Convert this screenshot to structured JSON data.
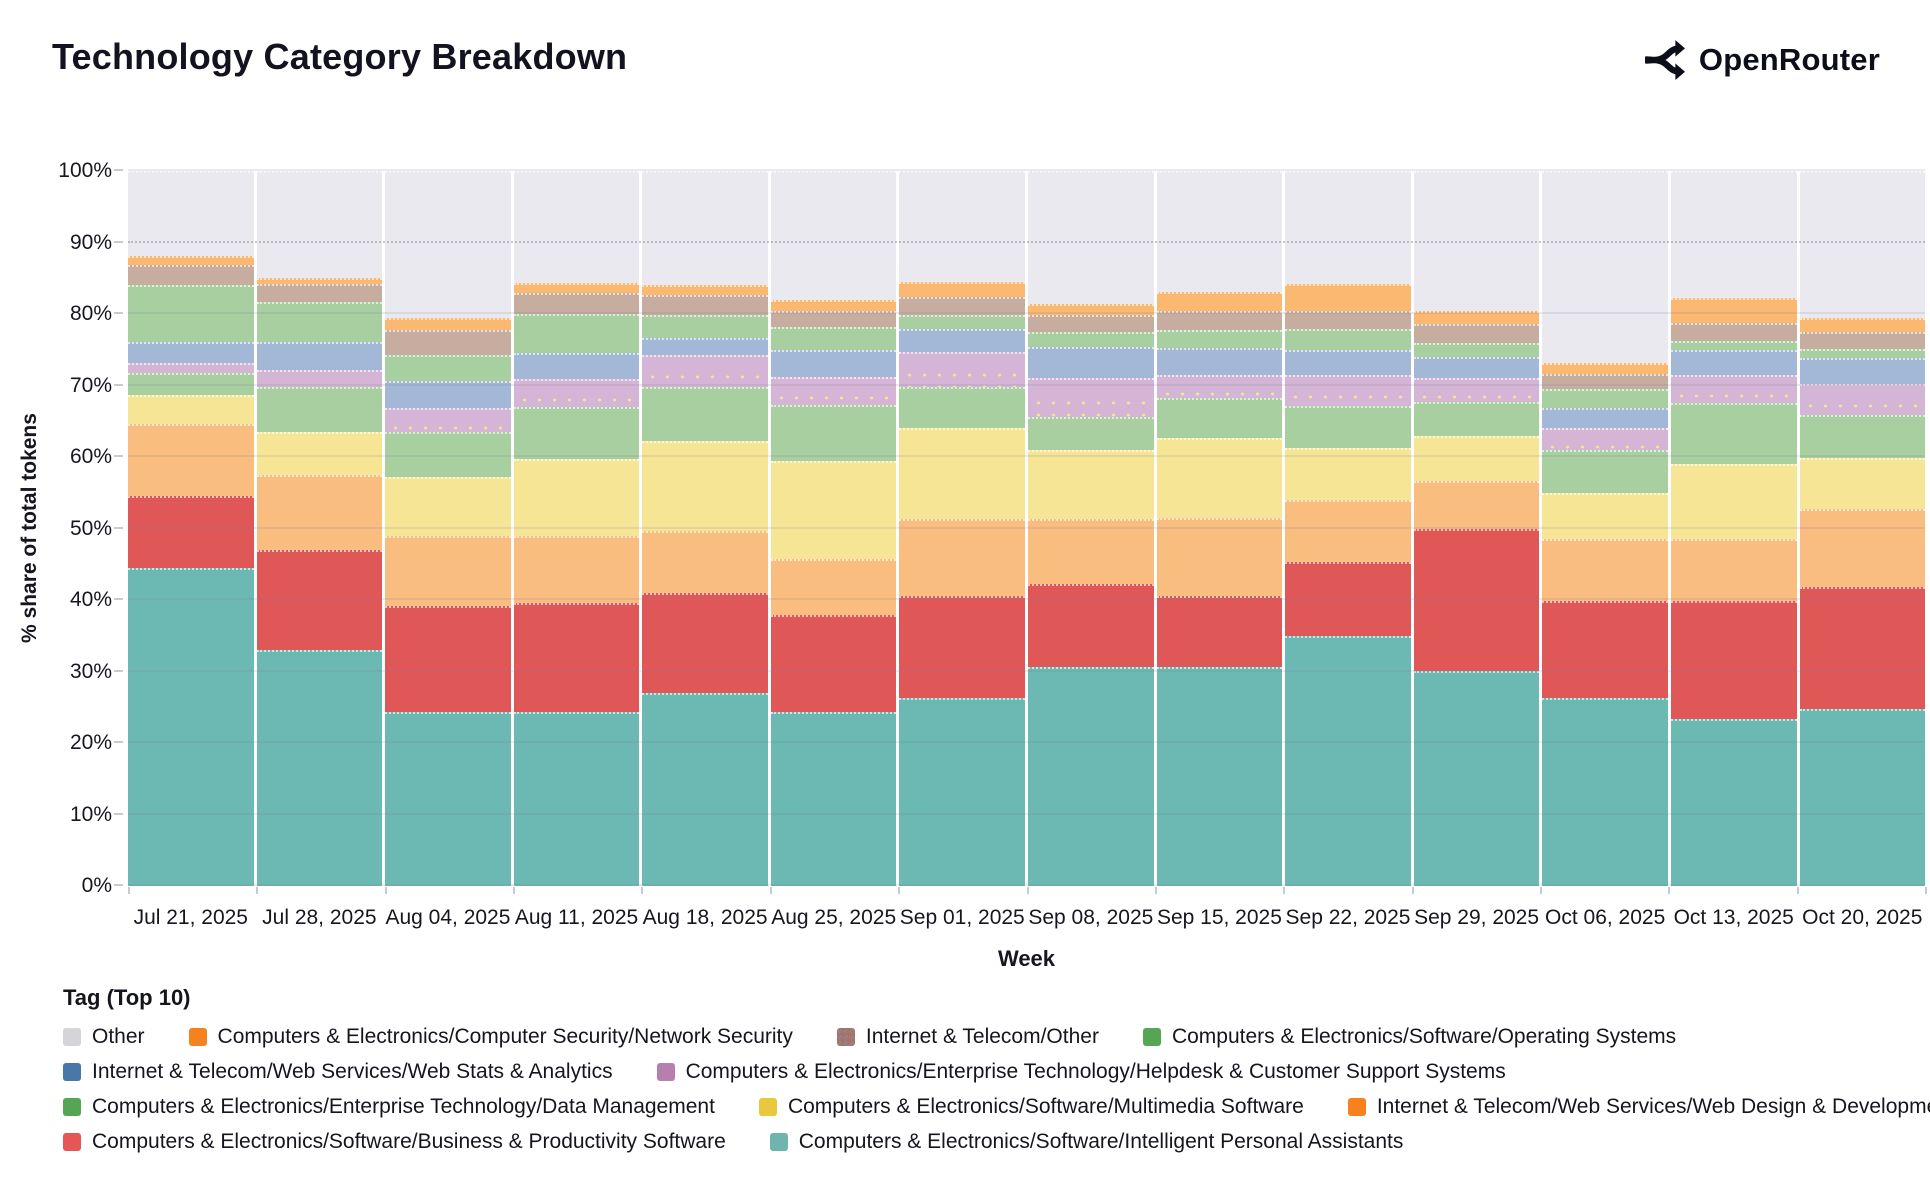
{
  "header": {
    "title": "Technology Category Breakdown",
    "brand": "OpenRouter"
  },
  "axes": {
    "y_title": "% share of total tokens",
    "x_title": "Week",
    "y_ticks": [
      "0%",
      "10%",
      "20%",
      "30%",
      "40%",
      "50%",
      "60%",
      "70%",
      "80%",
      "90%",
      "100%"
    ]
  },
  "legend": {
    "title": "Tag (Top 10)"
  },
  "chart_data": {
    "type": "bar",
    "stacked": true,
    "title": "Technology Category Breakdown",
    "xlabel": "Week",
    "ylabel": "% share of total tokens",
    "ylim": [
      0,
      100
    ],
    "legend_title": "Tag (Top 10)",
    "legend_position": "bottom",
    "grid": true,
    "categories": [
      "Jul 21, 2025",
      "Jul 28, 2025",
      "Aug 04, 2025",
      "Aug 11, 2025",
      "Aug 18, 2025",
      "Aug 25, 2025",
      "Sep 01, 2025",
      "Sep 08, 2025",
      "Sep 15, 2025",
      "Sep 22, 2025",
      "Sep 29, 2025",
      "Oct 06, 2025",
      "Oct 13, 2025",
      "Oct 20, 2025"
    ],
    "series": [
      {
        "name": "Computers & Electronics/Software/Intelligent Personal Assistants",
        "legend_color": "#6fb5ad",
        "bar_color": "#6cb8b2",
        "values": [
          44.5,
          33.0,
          24.3,
          24.3,
          27.0,
          24.3,
          26.3,
          30.6,
          30.6,
          34.9,
          30.1,
          26.3,
          23.4,
          24.8
        ]
      },
      {
        "name": "Computers & Electronics/Software/Business & Productivity Software",
        "legend_color": "#e45756",
        "bar_color": "#e05758",
        "values": [
          10.0,
          14.0,
          14.9,
          15.3,
          14.0,
          13.6,
          14.3,
          11.7,
          10.0,
          10.4,
          19.8,
          13.5,
          16.5,
          17.0
        ]
      },
      {
        "name": "Internet & Telecom/Web Services/Web Design & Development",
        "legend_color": "#f5821e",
        "bar_color": "#f9bd80",
        "values": [
          10.1,
          10.5,
          9.8,
          9.4,
          8.6,
          7.9,
          10.7,
          9.0,
          10.9,
          8.7,
          6.7,
          8.7,
          8.6,
          10.9
        ]
      },
      {
        "name": "Computers & Electronics/Software/Multimedia Software",
        "legend_color": "#e9c83e",
        "bar_color": "#f6e595",
        "values": [
          4.1,
          6.0,
          8.2,
          10.7,
          12.6,
          13.6,
          12.7,
          9.7,
          11.1,
          7.3,
          6.4,
          6.4,
          10.5,
          7.2
        ]
      },
      {
        "name": "Computers & Electronics/Enterprise Technology/Data Management",
        "legend_color": "#55a555",
        "bar_color": "#a8cfa0",
        "values": [
          3.0,
          6.3,
          6.3,
          7.3,
          7.6,
          7.9,
          5.8,
          4.6,
          5.6,
          5.9,
          4.7,
          6.1,
          8.5,
          6.0
        ]
      },
      {
        "name": "Computers & Electronics/Enterprise Technology/Helpdesk & Customer Support Systems",
        "legend_color": "#b77fad",
        "bar_color": "#d5b5d5",
        "pattern": "dots",
        "values": [
          1.4,
          2.4,
          3.3,
          3.9,
          4.5,
          3.9,
          4.9,
          5.4,
          3.3,
          4.3,
          3.4,
          3.0,
          4.0,
          4.3
        ]
      },
      {
        "name": "Internet & Telecom/Web Services/Web Stats & Analytics",
        "legend_color": "#4878a8",
        "bar_color": "#a2b8d6",
        "values": [
          3.0,
          3.9,
          3.9,
          3.6,
          2.3,
          3.8,
          3.2,
          4.4,
          3.7,
          3.5,
          2.9,
          2.9,
          3.4,
          3.6
        ]
      },
      {
        "name": "Computers & Electronics/Software/Operating Systems",
        "legend_color": "#55a555",
        "bar_color": "#a8cfa0",
        "values": [
          7.9,
          5.6,
          3.6,
          5.5,
          3.2,
          3.2,
          2.0,
          2.1,
          2.6,
          2.9,
          2.0,
          2.6,
          1.3,
          1.3
        ]
      },
      {
        "name": "Internet & Telecom/Other",
        "legend_color": "#9a7a6a",
        "legend_pattern": "checker",
        "bar_color": "#c6ada0",
        "values": [
          2.8,
          2.5,
          3.5,
          2.9,
          2.9,
          2.2,
          2.5,
          2.3,
          2.6,
          2.5,
          2.6,
          2.1,
          2.6,
          2.4
        ]
      },
      {
        "name": "Computers & Electronics/Computer Security/Network Security",
        "legend_color": "#f5821e",
        "bar_color": "#fbb871",
        "values": [
          1.3,
          0.8,
          1.6,
          1.5,
          1.4,
          1.6,
          2.1,
          1.6,
          2.7,
          3.8,
          1.8,
          1.5,
          3.4,
          2.0
        ]
      },
      {
        "name": "Other",
        "legend_color": "#d4d4d9",
        "bar_color": "#e9e9ef",
        "values": [
          11.9,
          15.0,
          20.6,
          15.6,
          15.9,
          18.0,
          15.5,
          18.6,
          16.9,
          15.8,
          19.6,
          26.9,
          17.8,
          20.5
        ]
      }
    ],
    "legend_rows": [
      [
        10,
        9,
        8,
        7
      ],
      [
        6,
        5
      ],
      [
        4,
        3,
        2
      ],
      [
        1,
        0
      ]
    ]
  }
}
